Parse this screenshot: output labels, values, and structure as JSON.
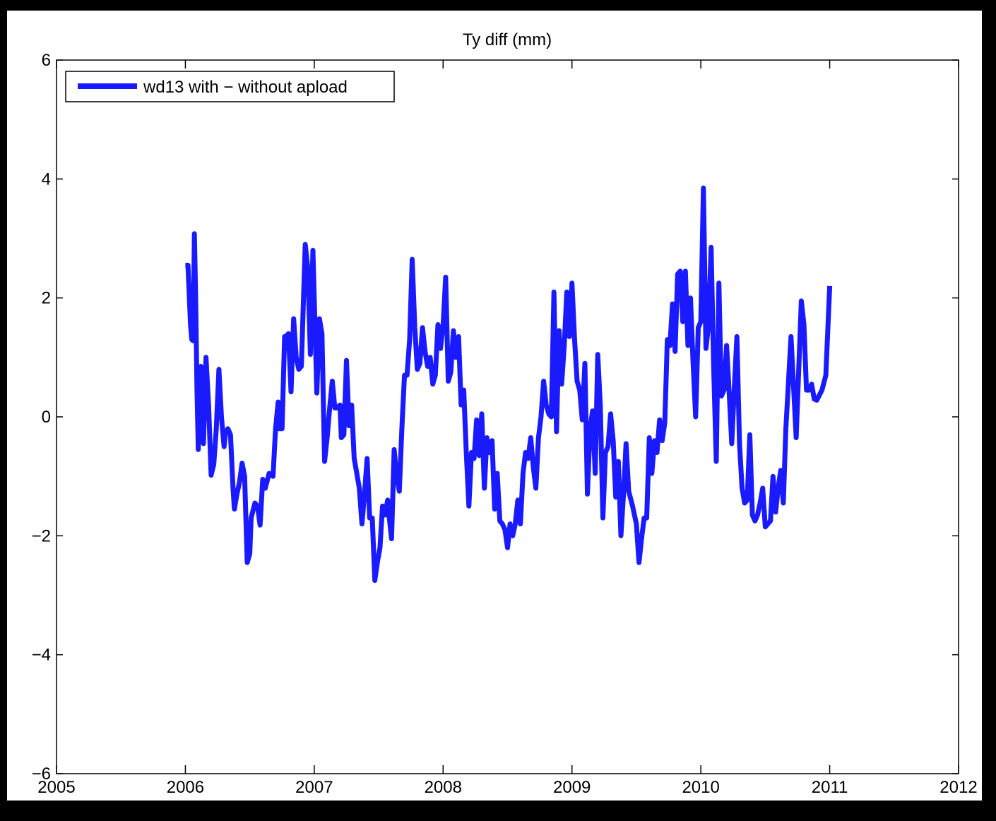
{
  "chart_data": {
    "type": "line",
    "title": "Ty diff (mm)",
    "xlabel": "",
    "ylabel": "",
    "xlim": [
      2005,
      2012
    ],
    "ylim": [
      -6,
      6
    ],
    "x_ticks": [
      2005,
      2006,
      2007,
      2008,
      2009,
      2010,
      2011,
      2012
    ],
    "x_tick_labels": [
      "2005",
      "2006",
      "2007",
      "2008",
      "2009",
      "2010",
      "2011",
      "2012"
    ],
    "y_ticks": [
      -6,
      -4,
      -2,
      0,
      2,
      4,
      6
    ],
    "y_tick_labels": [
      "−6",
      "−4",
      "−2",
      "0",
      "2",
      "4",
      "6"
    ],
    "grid": false,
    "legend": {
      "placement": "top-left",
      "entries": [
        "wd13 with − without apload"
      ]
    },
    "colors": {
      "series": "#1a1aff",
      "figure_background": "#000000",
      "axes_background": "#ffffff"
    },
    "series": [
      {
        "name": "wd13 with − without apload",
        "points": [
          [
            2006.0,
            2.55
          ],
          [
            2006.02,
            2.55
          ],
          [
            2006.03,
            2.05
          ],
          [
            2006.04,
            1.55
          ],
          [
            2006.05,
            1.3
          ],
          [
            2006.06,
            1.28
          ],
          [
            2006.07,
            3.08
          ],
          [
            2006.08,
            2.0
          ],
          [
            2006.09,
            0.5
          ],
          [
            2006.1,
            -0.55
          ],
          [
            2006.12,
            0.85
          ],
          [
            2006.13,
            0.0
          ],
          [
            2006.14,
            -0.45
          ],
          [
            2006.16,
            1.0
          ],
          [
            2006.18,
            0.2
          ],
          [
            2006.2,
            -0.98
          ],
          [
            2006.22,
            -0.8
          ],
          [
            2006.24,
            -0.2
          ],
          [
            2006.26,
            0.8
          ],
          [
            2006.28,
            0.0
          ],
          [
            2006.3,
            -0.5
          ],
          [
            2006.31,
            -0.3
          ],
          [
            2006.33,
            -0.2
          ],
          [
            2006.35,
            -0.3
          ],
          [
            2006.37,
            -1.2
          ],
          [
            2006.38,
            -1.55
          ],
          [
            2006.4,
            -1.3
          ],
          [
            2006.42,
            -1.1
          ],
          [
            2006.44,
            -0.78
          ],
          [
            2006.46,
            -1.0
          ],
          [
            2006.48,
            -2.45
          ],
          [
            2006.5,
            -2.3
          ],
          [
            2006.51,
            -1.7
          ],
          [
            2006.54,
            -1.45
          ],
          [
            2006.56,
            -1.5
          ],
          [
            2006.58,
            -1.82
          ],
          [
            2006.6,
            -1.05
          ],
          [
            2006.62,
            -1.2
          ],
          [
            2006.65,
            -0.95
          ],
          [
            2006.68,
            -1.0
          ],
          [
            2006.7,
            -0.2
          ],
          [
            2006.72,
            0.25
          ],
          [
            2006.73,
            -0.2
          ],
          [
            2006.75,
            -0.2
          ],
          [
            2006.77,
            1.35
          ],
          [
            2006.78,
            1.35
          ],
          [
            2006.8,
            1.4
          ],
          [
            2006.82,
            0.42
          ],
          [
            2006.84,
            1.65
          ],
          [
            2006.86,
            1.0
          ],
          [
            2006.88,
            0.8
          ],
          [
            2006.9,
            0.85
          ],
          [
            2006.93,
            2.9
          ],
          [
            2006.95,
            2.5
          ],
          [
            2006.97,
            1.05
          ],
          [
            2006.99,
            2.8
          ],
          [
            2007.01,
            1.2
          ],
          [
            2007.02,
            0.4
          ],
          [
            2007.04,
            1.65
          ],
          [
            2007.06,
            1.4
          ],
          [
            2007.08,
            -0.75
          ],
          [
            2007.1,
            -0.35
          ],
          [
            2007.12,
            0.15
          ],
          [
            2007.14,
            0.6
          ],
          [
            2007.16,
            0.15
          ],
          [
            2007.18,
            0.15
          ],
          [
            2007.2,
            0.2
          ],
          [
            2007.21,
            -0.35
          ],
          [
            2007.23,
            -0.3
          ],
          [
            2007.25,
            0.95
          ],
          [
            2007.27,
            -0.15
          ],
          [
            2007.29,
            0.2
          ],
          [
            2007.31,
            -0.7
          ],
          [
            2007.33,
            -0.95
          ],
          [
            2007.35,
            -1.2
          ],
          [
            2007.37,
            -1.8
          ],
          [
            2007.39,
            -1.3
          ],
          [
            2007.41,
            -0.7
          ],
          [
            2007.43,
            -1.7
          ],
          [
            2007.45,
            -1.7
          ],
          [
            2007.47,
            -2.75
          ],
          [
            2007.49,
            -2.45
          ],
          [
            2007.51,
            -2.2
          ],
          [
            2007.53,
            -1.5
          ],
          [
            2007.55,
            -1.65
          ],
          [
            2007.57,
            -1.4
          ],
          [
            2007.58,
            -1.65
          ],
          [
            2007.6,
            -2.05
          ],
          [
            2007.62,
            -0.55
          ],
          [
            2007.64,
            -1.0
          ],
          [
            2007.66,
            -1.25
          ],
          [
            2007.68,
            -0.2
          ],
          [
            2007.7,
            0.7
          ],
          [
            2007.72,
            0.7
          ],
          [
            2007.74,
            1.3
          ],
          [
            2007.76,
            2.65
          ],
          [
            2007.78,
            1.5
          ],
          [
            2007.8,
            0.8
          ],
          [
            2007.82,
            0.9
          ],
          [
            2007.84,
            1.5
          ],
          [
            2007.86,
            1.1
          ],
          [
            2007.88,
            0.85
          ],
          [
            2007.9,
            1.0
          ],
          [
            2007.92,
            0.55
          ],
          [
            2007.94,
            0.7
          ],
          [
            2007.96,
            1.55
          ],
          [
            2007.98,
            1.15
          ],
          [
            2008.0,
            1.55
          ],
          [
            2008.02,
            2.35
          ],
          [
            2008.04,
            0.6
          ],
          [
            2008.06,
            0.75
          ],
          [
            2008.08,
            1.45
          ],
          [
            2008.1,
            1.0
          ],
          [
            2008.12,
            1.35
          ],
          [
            2008.14,
            0.2
          ],
          [
            2008.16,
            0.45
          ],
          [
            2008.18,
            -0.6
          ],
          [
            2008.2,
            -1.5
          ],
          [
            2008.22,
            -0.6
          ],
          [
            2008.24,
            -0.7
          ],
          [
            2008.26,
            -0.05
          ],
          [
            2008.28,
            -0.65
          ],
          [
            2008.3,
            0.05
          ],
          [
            2008.32,
            -1.2
          ],
          [
            2008.34,
            -0.35
          ],
          [
            2008.36,
            -0.6
          ],
          [
            2008.38,
            -0.4
          ],
          [
            2008.4,
            -1.55
          ],
          [
            2008.42,
            -0.95
          ],
          [
            2008.44,
            -1.75
          ],
          [
            2008.46,
            -1.8
          ],
          [
            2008.48,
            -1.9
          ],
          [
            2008.5,
            -2.2
          ],
          [
            2008.52,
            -1.8
          ],
          [
            2008.54,
            -2.0
          ],
          [
            2008.56,
            -1.8
          ],
          [
            2008.58,
            -1.4
          ],
          [
            2008.6,
            -1.8
          ],
          [
            2008.62,
            -0.95
          ],
          [
            2008.64,
            -0.6
          ],
          [
            2008.66,
            -0.7
          ],
          [
            2008.68,
            -0.35
          ],
          [
            2008.7,
            -0.85
          ],
          [
            2008.72,
            -1.2
          ],
          [
            2008.74,
            -0.35
          ],
          [
            2008.76,
            0.0
          ],
          [
            2008.78,
            0.6
          ],
          [
            2008.8,
            0.2
          ],
          [
            2008.82,
            0.05
          ],
          [
            2008.84,
            0.0
          ],
          [
            2008.86,
            2.1
          ],
          [
            2008.88,
            -0.25
          ],
          [
            2008.9,
            1.45
          ],
          [
            2008.92,
            0.55
          ],
          [
            2008.94,
            1.2
          ],
          [
            2008.96,
            2.1
          ],
          [
            2008.98,
            1.35
          ],
          [
            2009.0,
            2.25
          ],
          [
            2009.02,
            1.3
          ],
          [
            2009.04,
            0.6
          ],
          [
            2009.06,
            0.45
          ],
          [
            2009.08,
            -0.05
          ],
          [
            2009.1,
            0.9
          ],
          [
            2009.12,
            -1.3
          ],
          [
            2009.14,
            -0.2
          ],
          [
            2009.16,
            0.1
          ],
          [
            2009.18,
            -0.95
          ],
          [
            2009.2,
            1.05
          ],
          [
            2009.22,
            0.2
          ],
          [
            2009.24,
            -1.7
          ],
          [
            2009.26,
            -0.6
          ],
          [
            2009.28,
            -0.5
          ],
          [
            2009.3,
            0.05
          ],
          [
            2009.32,
            -0.4
          ],
          [
            2009.34,
            -1.35
          ],
          [
            2009.36,
            -0.75
          ],
          [
            2009.38,
            -2.0
          ],
          [
            2009.4,
            -1.3
          ],
          [
            2009.42,
            -0.45
          ],
          [
            2009.44,
            -1.25
          ],
          [
            2009.47,
            -1.5
          ],
          [
            2009.5,
            -1.8
          ],
          [
            2009.52,
            -2.45
          ],
          [
            2009.54,
            -2.05
          ],
          [
            2009.56,
            -1.7
          ],
          [
            2009.58,
            -1.7
          ],
          [
            2009.6,
            -0.35
          ],
          [
            2009.62,
            -0.95
          ],
          [
            2009.64,
            -0.4
          ],
          [
            2009.66,
            -0.6
          ],
          [
            2009.68,
            -0.05
          ],
          [
            2009.7,
            -0.4
          ],
          [
            2009.72,
            -0.1
          ],
          [
            2009.74,
            1.3
          ],
          [
            2009.76,
            1.2
          ],
          [
            2009.78,
            1.9
          ],
          [
            2009.8,
            1.1
          ],
          [
            2009.82,
            2.4
          ],
          [
            2009.84,
            2.45
          ],
          [
            2009.86,
            1.6
          ],
          [
            2009.88,
            2.45
          ],
          [
            2009.9,
            1.2
          ],
          [
            2009.92,
            2.0
          ],
          [
            2009.94,
            0.9
          ],
          [
            2009.96,
            0.0
          ],
          [
            2009.98,
            1.5
          ],
          [
            2010.0,
            1.6
          ],
          [
            2010.02,
            3.85
          ],
          [
            2010.04,
            1.15
          ],
          [
            2010.06,
            1.55
          ],
          [
            2010.08,
            2.85
          ],
          [
            2010.1,
            0.8
          ],
          [
            2010.12,
            -0.75
          ],
          [
            2010.14,
            2.25
          ],
          [
            2010.16,
            0.35
          ],
          [
            2010.18,
            0.45
          ],
          [
            2010.2,
            1.2
          ],
          [
            2010.22,
            0.4
          ],
          [
            2010.24,
            -0.45
          ],
          [
            2010.26,
            0.5
          ],
          [
            2010.28,
            1.35
          ],
          [
            2010.3,
            -0.45
          ],
          [
            2010.32,
            -1.2
          ],
          [
            2010.34,
            -1.45
          ],
          [
            2010.36,
            -1.4
          ],
          [
            2010.38,
            -0.3
          ],
          [
            2010.4,
            -1.65
          ],
          [
            2010.42,
            -1.75
          ],
          [
            2010.44,
            -1.65
          ],
          [
            2010.46,
            -1.45
          ],
          [
            2010.48,
            -1.2
          ],
          [
            2010.5,
            -1.85
          ],
          [
            2010.52,
            -1.8
          ],
          [
            2010.54,
            -1.75
          ],
          [
            2010.56,
            -1.0
          ],
          [
            2010.58,
            -1.6
          ],
          [
            2010.6,
            -1.2
          ],
          [
            2010.62,
            -0.9
          ],
          [
            2010.64,
            -1.45
          ],
          [
            2010.66,
            -0.2
          ],
          [
            2010.7,
            1.35
          ],
          [
            2010.74,
            -0.35
          ],
          [
            2010.78,
            1.95
          ],
          [
            2010.8,
            1.55
          ],
          [
            2010.82,
            0.45
          ],
          [
            2010.84,
            0.45
          ],
          [
            2010.86,
            0.55
          ],
          [
            2010.88,
            0.3
          ],
          [
            2010.9,
            0.28
          ],
          [
            2010.94,
            0.45
          ],
          [
            2010.97,
            0.7
          ],
          [
            2011.0,
            2.2
          ]
        ]
      }
    ]
  }
}
